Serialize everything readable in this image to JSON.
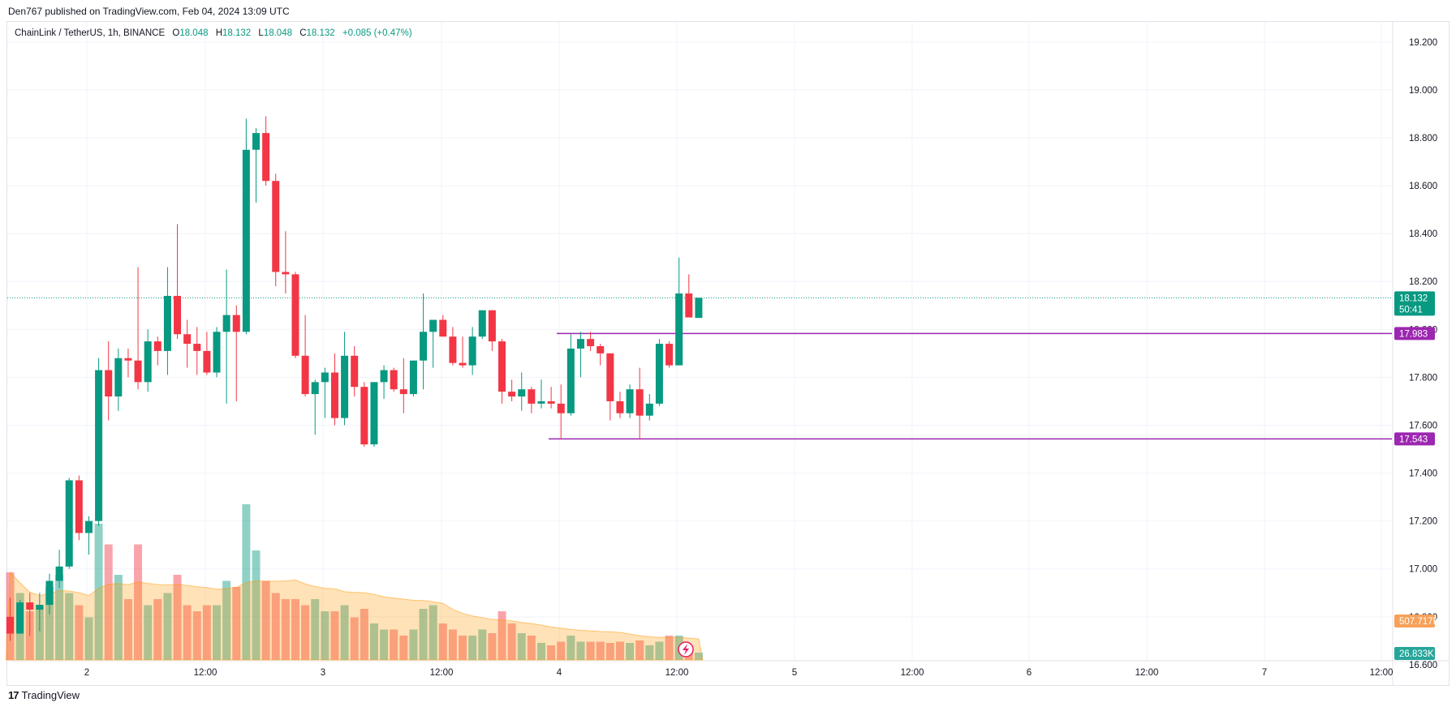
{
  "header": {
    "published": "Den767 published on TradingView.com, Feb 04, 2024 13:09 UTC"
  },
  "legend": {
    "symbol": "ChainLink / TetherUS, 1h, BINANCE",
    "o_label": "O",
    "o_value": "18.048",
    "h_label": "H",
    "h_value": "18.132",
    "l_label": "L",
    "l_value": "18.048",
    "c_label": "C",
    "c_value": "18.132",
    "change": "+0.085 (+0.47%)"
  },
  "footer": {
    "brand": "TradingView"
  },
  "colors": {
    "up": "#089981",
    "down": "#f23645",
    "level": "#9c27b0",
    "volume_ma": "#ff9800"
  },
  "icons": {
    "footer_logo": "tradingview-logo-icon",
    "lightning": "lightning-icon"
  },
  "chart_data": {
    "type": "candlestick",
    "title": "",
    "ylim": [
      16.62,
      19.24
    ],
    "y_ticks": [
      "19.200",
      "19.000",
      "18.800",
      "18.600",
      "18.400",
      "18.200",
      "18.000",
      "17.800",
      "17.600",
      "17.400",
      "17.200",
      "17.000",
      "16.800",
      "16.600"
    ],
    "x_ticks": [
      "2",
      "12:00",
      "3",
      "12:00",
      "4",
      "12:00",
      "5",
      "12:00",
      "6",
      "12:00",
      "7",
      "12:00"
    ],
    "grid": true,
    "candles": [
      [
        16.8,
        16.88,
        16.7,
        16.73
      ],
      [
        16.73,
        16.87,
        16.73,
        16.86
      ],
      [
        16.86,
        16.9,
        16.72,
        16.83
      ],
      [
        16.83,
        16.9,
        16.74,
        16.85
      ],
      [
        16.85,
        16.98,
        16.81,
        16.95
      ],
      [
        16.95,
        17.08,
        16.92,
        17.01
      ],
      [
        17.01,
        17.38,
        17.0,
        17.37
      ],
      [
        17.37,
        17.39,
        17.12,
        17.15
      ],
      [
        17.15,
        17.22,
        17.06,
        17.2
      ],
      [
        17.2,
        17.88,
        17.18,
        17.83
      ],
      [
        17.83,
        17.95,
        17.62,
        17.72
      ],
      [
        17.72,
        17.92,
        17.66,
        17.88
      ],
      [
        17.88,
        17.92,
        17.8,
        17.87
      ],
      [
        17.87,
        18.26,
        17.75,
        17.78
      ],
      [
        17.78,
        18.0,
        17.74,
        17.95
      ],
      [
        17.95,
        17.97,
        17.85,
        17.91
      ],
      [
        17.91,
        18.26,
        17.81,
        18.14
      ],
      [
        18.14,
        18.44,
        17.96,
        17.98
      ],
      [
        17.98,
        18.04,
        17.84,
        17.94
      ],
      [
        17.94,
        18.01,
        17.81,
        17.91
      ],
      [
        17.91,
        17.99,
        17.81,
        17.82
      ],
      [
        17.82,
        18.01,
        17.8,
        17.99
      ],
      [
        17.99,
        18.25,
        17.69,
        18.06
      ],
      [
        18.06,
        18.1,
        17.7,
        17.99
      ],
      [
        17.99,
        18.88,
        17.98,
        18.75
      ],
      [
        18.75,
        18.84,
        18.53,
        18.82
      ],
      [
        18.82,
        18.89,
        18.6,
        18.62
      ],
      [
        18.62,
        18.65,
        18.18,
        18.24
      ],
      [
        18.24,
        18.41,
        18.15,
        18.23
      ],
      [
        18.23,
        18.24,
        17.88,
        17.89
      ],
      [
        17.89,
        18.06,
        17.72,
        17.73
      ],
      [
        17.73,
        17.79,
        17.56,
        17.78
      ],
      [
        17.78,
        17.84,
        17.63,
        17.82
      ],
      [
        17.82,
        17.9,
        17.6,
        17.63
      ],
      [
        17.63,
        17.99,
        17.6,
        17.89
      ],
      [
        17.89,
        17.93,
        17.72,
        17.76
      ],
      [
        17.76,
        17.78,
        17.51,
        17.52
      ],
      [
        17.52,
        17.78,
        17.51,
        17.78
      ],
      [
        17.78,
        17.85,
        17.71,
        17.83
      ],
      [
        17.83,
        17.84,
        17.74,
        17.75
      ],
      [
        17.75,
        17.88,
        17.65,
        17.73
      ],
      [
        17.73,
        17.87,
        17.72,
        17.87
      ],
      [
        17.87,
        18.15,
        17.75,
        17.99
      ],
      [
        17.99,
        18.03,
        17.84,
        18.04
      ],
      [
        18.04,
        18.06,
        17.97,
        17.97
      ],
      [
        17.97,
        18.01,
        17.85,
        17.86
      ],
      [
        17.86,
        17.97,
        17.84,
        17.85
      ],
      [
        17.85,
        18.01,
        17.81,
        17.97
      ],
      [
        17.97,
        18.08,
        17.96,
        18.08
      ],
      [
        18.08,
        18.08,
        17.91,
        17.95
      ],
      [
        17.95,
        17.96,
        17.69,
        17.74
      ],
      [
        17.74,
        17.79,
        17.7,
        17.72
      ],
      [
        17.72,
        17.82,
        17.66,
        17.75
      ],
      [
        17.75,
        17.76,
        17.65,
        17.69
      ],
      [
        17.69,
        17.79,
        17.67,
        17.7
      ],
      [
        17.7,
        17.76,
        17.67,
        17.69
      ],
      [
        17.69,
        17.77,
        17.54,
        17.65
      ],
      [
        17.65,
        17.98,
        17.64,
        17.92
      ],
      [
        17.92,
        17.99,
        17.8,
        17.96
      ],
      [
        17.96,
        17.99,
        17.91,
        17.93
      ],
      [
        17.93,
        17.94,
        17.85,
        17.9
      ],
      [
        17.9,
        17.9,
        17.62,
        17.7
      ],
      [
        17.7,
        17.74,
        17.63,
        17.65
      ],
      [
        17.65,
        17.77,
        17.63,
        17.75
      ],
      [
        17.75,
        17.84,
        17.54,
        17.64
      ],
      [
        17.64,
        17.73,
        17.62,
        17.69
      ],
      [
        17.69,
        17.96,
        17.68,
        17.94
      ],
      [
        17.94,
        17.95,
        17.84,
        17.85
      ],
      [
        17.85,
        18.3,
        17.85,
        18.15
      ],
      [
        18.15,
        18.23,
        18.05,
        18.05
      ],
      [
        18.048,
        18.132,
        18.048,
        18.132
      ]
    ],
    "volumes": [
      0.72,
      0.55,
      0.4,
      0.45,
      0.6,
      0.7,
      0.55,
      0.45,
      0.35,
      1.12,
      0.95,
      0.7,
      0.5,
      0.95,
      0.45,
      0.5,
      0.55,
      0.7,
      0.45,
      0.4,
      0.45,
      0.45,
      0.65,
      0.6,
      1.28,
      0.9,
      0.65,
      0.55,
      0.5,
      0.5,
      0.45,
      0.5,
      0.4,
      0.4,
      0.45,
      0.35,
      0.42,
      0.3,
      0.25,
      0.25,
      0.2,
      0.25,
      0.42,
      0.45,
      0.3,
      0.25,
      0.2,
      0.2,
      0.25,
      0.22,
      0.4,
      0.3,
      0.22,
      0.2,
      0.14,
      0.12,
      0.15,
      0.2,
      0.15,
      0.15,
      0.15,
      0.14,
      0.15,
      0.14,
      0.16,
      0.12,
      0.15,
      0.2,
      0.2,
      0.12,
      0.06
    ],
    "series": [
      {
        "name": "Volume",
        "type": "bar"
      },
      {
        "name": "Volume MA",
        "type": "area"
      }
    ],
    "horizontal_levels": [
      {
        "value": 17.983,
        "label": "17.983"
      },
      {
        "value": 17.543,
        "label": "17.543"
      }
    ],
    "last_price": {
      "value": 18.132,
      "label": "18.132",
      "countdown": "50:41"
    },
    "volume_ma_label": "507.717K",
    "volume_label": "26.833K"
  }
}
